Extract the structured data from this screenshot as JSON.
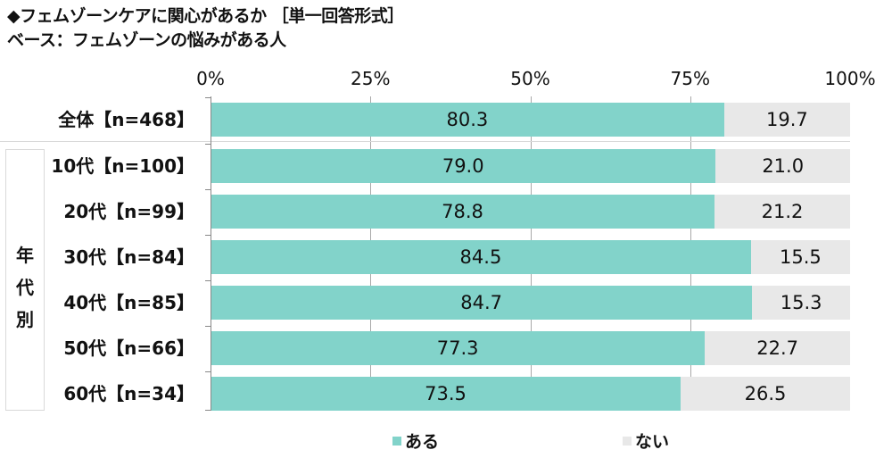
{
  "header": {
    "title": "◆フェムゾーンケアに関心があるか ［単一回答形式］",
    "subtitle": "ベース：フェムゾーンの悩みがある人"
  },
  "colors": {
    "yes": "#82d3ca",
    "no": "#e8e8e8"
  },
  "axis": {
    "ticks": [
      "0%",
      "25%",
      "50%",
      "75%",
      "100%"
    ]
  },
  "group_label": "年\n代\n別",
  "group_label_chars": [
    "年",
    "代",
    "別"
  ],
  "legend": [
    {
      "label": "ある",
      "color": "#82d3ca"
    },
    {
      "label": "ない",
      "color": "#e8e8e8"
    }
  ],
  "rows": [
    {
      "label": "全体【n=468】",
      "yes": "80.3",
      "no": "19.7"
    },
    {
      "label": "10代【n=100】",
      "yes": "79.0",
      "no": "21.0"
    },
    {
      "label": "20代【n=99】",
      "yes": "78.8",
      "no": "21.2"
    },
    {
      "label": "30代【n=84】",
      "yes": "84.5",
      "no": "15.5"
    },
    {
      "label": "40代【n=85】",
      "yes": "84.7",
      "no": "15.3"
    },
    {
      "label": "50代【n=66】",
      "yes": "77.3",
      "no": "22.7"
    },
    {
      "label": "60代【n=34】",
      "yes": "73.5",
      "no": "26.5"
    }
  ],
  "chart_data": {
    "type": "bar",
    "orientation": "horizontal",
    "stacked": true,
    "title": "◆フェムゾーンケアに関心があるか ［単一回答形式］",
    "subtitle": "ベース：フェムゾーンの悩みがある人",
    "categories": [
      "全体【n=468】",
      "10代【n=100】",
      "20代【n=99】",
      "30代【n=84】",
      "40代【n=85】",
      "50代【n=66】",
      "60代【n=34】"
    ],
    "category_group": {
      "label": "年代別",
      "members": [
        "10代【n=100】",
        "20代【n=99】",
        "30代【n=84】",
        "40代【n=85】",
        "50代【n=66】",
        "60代【n=34】"
      ]
    },
    "series": [
      {
        "name": "ある",
        "color": "#82d3ca",
        "values": [
          80.3,
          79.0,
          78.8,
          84.5,
          84.7,
          77.3,
          73.5
        ]
      },
      {
        "name": "ない",
        "color": "#e8e8e8",
        "values": [
          19.7,
          21.0,
          21.2,
          15.5,
          15.3,
          22.7,
          26.5
        ]
      }
    ],
    "xlim": [
      0,
      100
    ],
    "xticks": [
      "0%",
      "25%",
      "50%",
      "75%",
      "100%"
    ],
    "grid": true,
    "legend_position": "bottom"
  }
}
